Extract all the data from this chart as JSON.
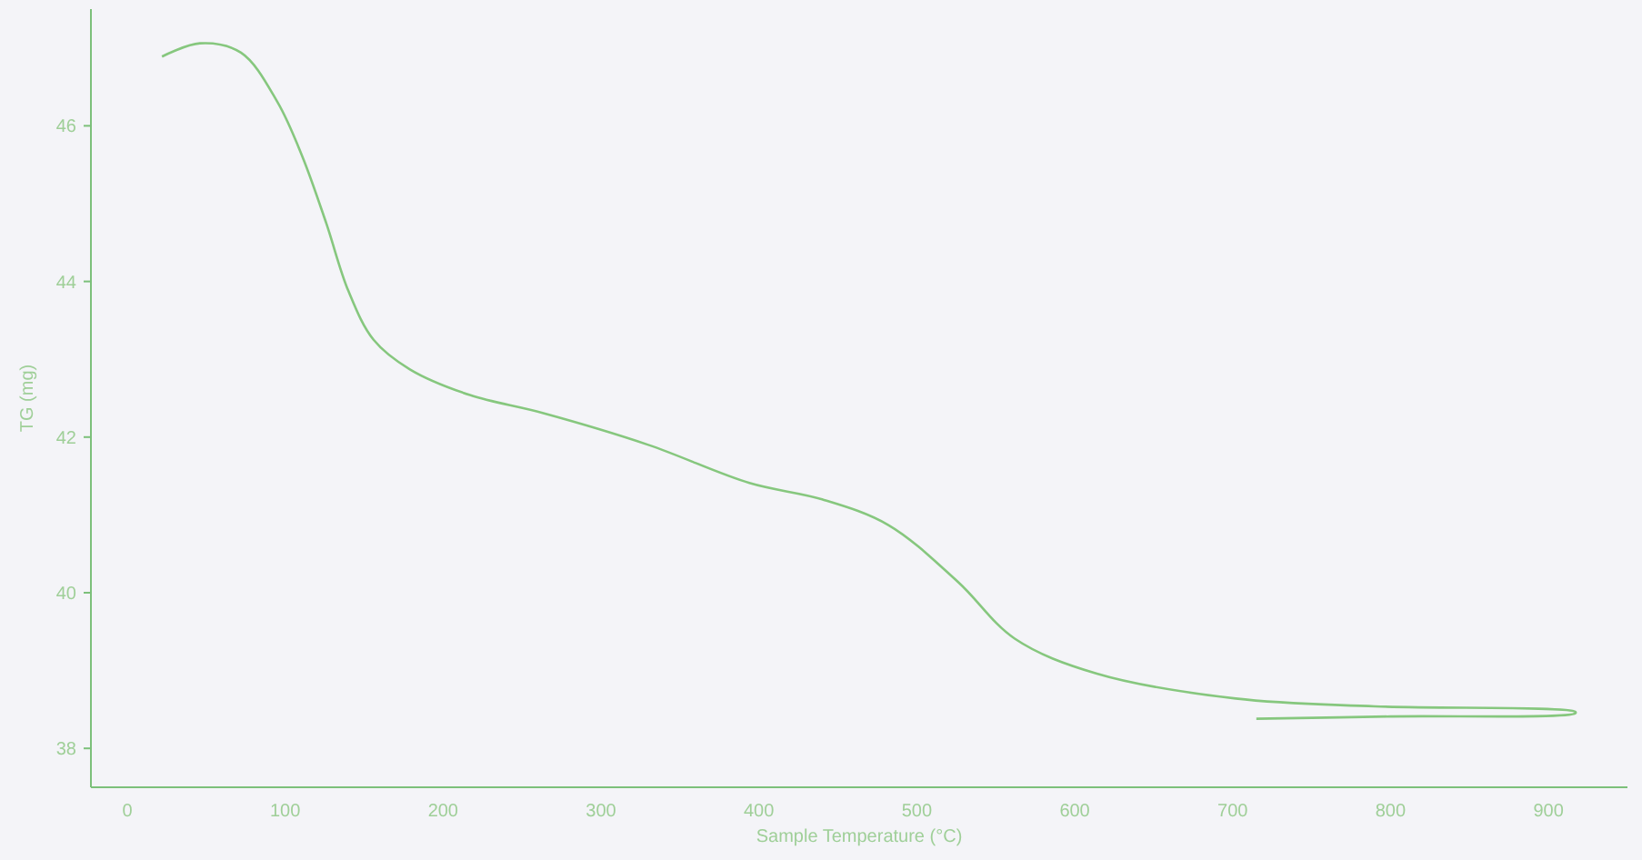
{
  "chart_data": {
    "type": "line",
    "xlabel": "Sample Temperature (°C)",
    "ylabel": "TG (mg)",
    "xlim": [
      -23,
      950
    ],
    "ylim": [
      37.5,
      47.5
    ],
    "xticks": [
      0,
      100,
      200,
      300,
      400,
      500,
      600,
      700,
      800,
      900
    ],
    "yticks": [
      38,
      40,
      42,
      44,
      46
    ],
    "grid": false,
    "marker": "none",
    "line_style": "solid",
    "series": [
      {
        "color": "#86c77e",
        "x": [
          22,
          46,
          72,
          95,
          111,
          126,
          140,
          156,
          179,
          217,
          263,
          330,
          394,
          440,
          482,
          526,
          562,
          614,
          702,
          790,
          917,
          917,
          800,
          715
        ],
        "values": [
          46.89,
          47.06,
          46.94,
          46.31,
          45.6,
          44.75,
          43.88,
          43.25,
          42.87,
          42.54,
          42.31,
          41.9,
          41.41,
          41.2,
          40.87,
          40.14,
          39.41,
          38.96,
          38.64,
          38.54,
          38.47,
          38.45,
          38.41,
          38.38
        ]
      }
    ]
  }
}
